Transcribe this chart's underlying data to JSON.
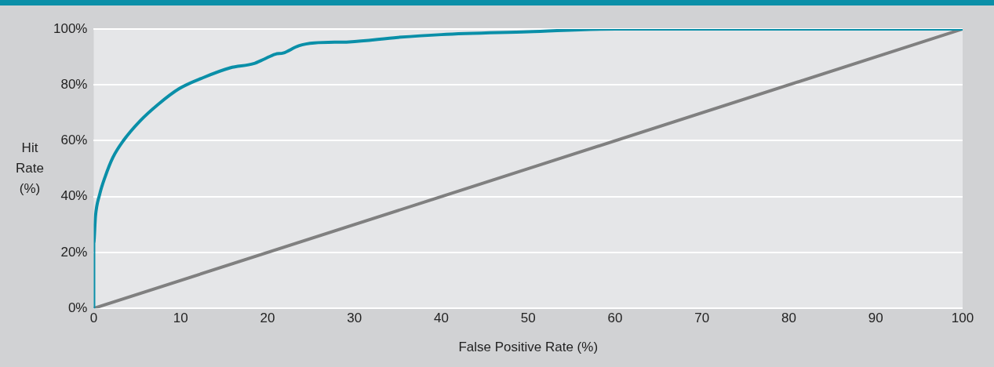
{
  "chart_data": {
    "type": "line",
    "xlabel": "False Positive Rate (%)",
    "ylabel": "Hit Rate (%)",
    "xlim": [
      0,
      100
    ],
    "xticks": [
      0,
      10,
      20,
      30,
      40,
      50,
      60,
      70,
      80,
      90,
      100
    ],
    "ylim": [
      0,
      100
    ],
    "yticks": [
      {
        "value": 0,
        "label": "0%"
      },
      {
        "value": 20,
        "label": "20%"
      },
      {
        "value": 40,
        "label": "40%"
      },
      {
        "value": 60,
        "label": "60%"
      },
      {
        "value": 80,
        "label": "80%"
      },
      {
        "value": 100,
        "label": "100%"
      }
    ],
    "grid": "y",
    "legend": false,
    "marker": "none",
    "line_style": "solid",
    "series": [
      {
        "color": "#0a8fa8",
        "x": [
          0,
          0,
          0.2,
          0.7,
          1.3,
          2.2,
          3.4,
          5.3,
          7.4,
          9.8,
          12.6,
          15.7,
          18.4,
          19.6,
          20.9,
          21.8,
          23.6,
          25.4,
          29.4,
          35,
          40,
          50,
          60,
          100
        ],
        "values": [
          0,
          23.4,
          33,
          41,
          47,
          54,
          60,
          67,
          73,
          78.6,
          82.6,
          86.1,
          87.6,
          89.2,
          91,
          91.4,
          94,
          95,
          95.4,
          97,
          98,
          99,
          100,
          100
        ]
      },
      {
        "color": "#808080",
        "x": [
          0,
          100
        ],
        "values": [
          0,
          100
        ]
      }
    ]
  }
}
